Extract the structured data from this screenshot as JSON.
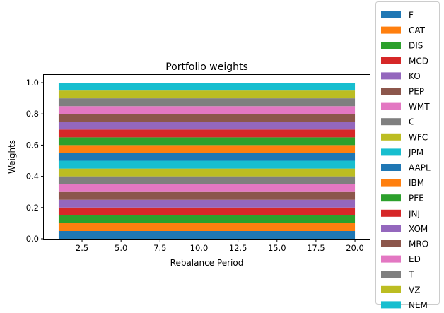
{
  "chart_data": {
    "type": "area",
    "title": "Portfolio weights",
    "xlabel": "Rebalance Period",
    "ylabel": "Weights",
    "x": [
      1,
      2,
      3,
      4,
      5,
      6,
      7,
      8,
      9,
      10,
      11,
      12,
      13,
      14,
      15,
      16,
      17,
      18,
      19,
      20
    ],
    "xlim": [
      0.05,
      20.95
    ],
    "ylim": [
      0,
      1.05
    ],
    "xticks": [
      "2.5",
      "5.0",
      "7.5",
      "10.0",
      "12.5",
      "15.0",
      "17.5",
      "20.0"
    ],
    "yticks": [
      "0.0",
      "0.2",
      "0.4",
      "0.6",
      "0.8",
      "1.0"
    ],
    "stacked": true,
    "grid": false,
    "legend_position": "outside-right",
    "series": [
      {
        "name": "F",
        "color": "#1f77b4",
        "values": [
          0.05,
          0.05,
          0.05,
          0.05,
          0.05,
          0.05,
          0.05,
          0.05,
          0.05,
          0.05,
          0.05,
          0.05,
          0.05,
          0.05,
          0.05,
          0.05,
          0.05,
          0.05,
          0.05,
          0.05
        ]
      },
      {
        "name": "CAT",
        "color": "#ff7f0e",
        "values": [
          0.05,
          0.05,
          0.05,
          0.05,
          0.05,
          0.05,
          0.05,
          0.05,
          0.05,
          0.05,
          0.05,
          0.05,
          0.05,
          0.05,
          0.05,
          0.05,
          0.05,
          0.05,
          0.05,
          0.05
        ]
      },
      {
        "name": "DIS",
        "color": "#2ca02c",
        "values": [
          0.05,
          0.05,
          0.05,
          0.05,
          0.05,
          0.05,
          0.05,
          0.05,
          0.05,
          0.05,
          0.05,
          0.05,
          0.05,
          0.05,
          0.05,
          0.05,
          0.05,
          0.05,
          0.05,
          0.05
        ]
      },
      {
        "name": "MCD",
        "color": "#d62728",
        "values": [
          0.05,
          0.05,
          0.05,
          0.05,
          0.05,
          0.05,
          0.05,
          0.05,
          0.05,
          0.05,
          0.05,
          0.05,
          0.05,
          0.05,
          0.05,
          0.05,
          0.05,
          0.05,
          0.05,
          0.05
        ]
      },
      {
        "name": "KO",
        "color": "#9467bd",
        "values": [
          0.05,
          0.05,
          0.05,
          0.05,
          0.05,
          0.05,
          0.05,
          0.05,
          0.05,
          0.05,
          0.05,
          0.05,
          0.05,
          0.05,
          0.05,
          0.05,
          0.05,
          0.05,
          0.05,
          0.05
        ]
      },
      {
        "name": "PEP",
        "color": "#8c564b",
        "values": [
          0.05,
          0.05,
          0.05,
          0.05,
          0.05,
          0.05,
          0.05,
          0.05,
          0.05,
          0.05,
          0.05,
          0.05,
          0.05,
          0.05,
          0.05,
          0.05,
          0.05,
          0.05,
          0.05,
          0.05
        ]
      },
      {
        "name": "WMT",
        "color": "#e377c2",
        "values": [
          0.05,
          0.05,
          0.05,
          0.05,
          0.05,
          0.05,
          0.05,
          0.05,
          0.05,
          0.05,
          0.05,
          0.05,
          0.05,
          0.05,
          0.05,
          0.05,
          0.05,
          0.05,
          0.05,
          0.05
        ]
      },
      {
        "name": "C",
        "color": "#7f7f7f",
        "values": [
          0.05,
          0.05,
          0.05,
          0.05,
          0.05,
          0.05,
          0.05,
          0.05,
          0.05,
          0.05,
          0.05,
          0.05,
          0.05,
          0.05,
          0.05,
          0.05,
          0.05,
          0.05,
          0.05,
          0.05
        ]
      },
      {
        "name": "WFC",
        "color": "#bcbd22",
        "values": [
          0.05,
          0.05,
          0.05,
          0.05,
          0.05,
          0.05,
          0.05,
          0.05,
          0.05,
          0.05,
          0.05,
          0.05,
          0.05,
          0.05,
          0.05,
          0.05,
          0.05,
          0.05,
          0.05,
          0.05
        ]
      },
      {
        "name": "JPM",
        "color": "#17becf",
        "values": [
          0.05,
          0.05,
          0.05,
          0.05,
          0.05,
          0.05,
          0.05,
          0.05,
          0.05,
          0.05,
          0.05,
          0.05,
          0.05,
          0.05,
          0.05,
          0.05,
          0.05,
          0.05,
          0.05,
          0.05
        ]
      },
      {
        "name": "AAPL",
        "color": "#1f77b4",
        "values": [
          0.05,
          0.05,
          0.05,
          0.05,
          0.05,
          0.05,
          0.05,
          0.05,
          0.05,
          0.05,
          0.05,
          0.05,
          0.05,
          0.05,
          0.05,
          0.05,
          0.05,
          0.05,
          0.05,
          0.05
        ]
      },
      {
        "name": "IBM",
        "color": "#ff7f0e",
        "values": [
          0.05,
          0.05,
          0.05,
          0.05,
          0.05,
          0.05,
          0.05,
          0.05,
          0.05,
          0.05,
          0.05,
          0.05,
          0.05,
          0.05,
          0.05,
          0.05,
          0.05,
          0.05,
          0.05,
          0.05
        ]
      },
      {
        "name": "PFE",
        "color": "#2ca02c",
        "values": [
          0.05,
          0.05,
          0.05,
          0.05,
          0.05,
          0.05,
          0.05,
          0.05,
          0.05,
          0.05,
          0.05,
          0.05,
          0.05,
          0.05,
          0.05,
          0.05,
          0.05,
          0.05,
          0.05,
          0.05
        ]
      },
      {
        "name": "JNJ",
        "color": "#d62728",
        "values": [
          0.05,
          0.05,
          0.05,
          0.05,
          0.05,
          0.05,
          0.05,
          0.05,
          0.05,
          0.05,
          0.05,
          0.05,
          0.05,
          0.05,
          0.05,
          0.05,
          0.05,
          0.05,
          0.05,
          0.05
        ]
      },
      {
        "name": "XOM",
        "color": "#9467bd",
        "values": [
          0.05,
          0.05,
          0.05,
          0.05,
          0.05,
          0.05,
          0.05,
          0.05,
          0.05,
          0.05,
          0.05,
          0.05,
          0.05,
          0.05,
          0.05,
          0.05,
          0.05,
          0.05,
          0.05,
          0.05
        ]
      },
      {
        "name": "MRO",
        "color": "#8c564b",
        "values": [
          0.05,
          0.05,
          0.05,
          0.05,
          0.05,
          0.05,
          0.05,
          0.05,
          0.05,
          0.05,
          0.05,
          0.05,
          0.05,
          0.05,
          0.05,
          0.05,
          0.05,
          0.05,
          0.05,
          0.05
        ]
      },
      {
        "name": "ED",
        "color": "#e377c2",
        "values": [
          0.05,
          0.05,
          0.05,
          0.05,
          0.05,
          0.05,
          0.05,
          0.05,
          0.05,
          0.05,
          0.05,
          0.05,
          0.05,
          0.05,
          0.05,
          0.05,
          0.05,
          0.05,
          0.05,
          0.05
        ]
      },
      {
        "name": "T",
        "color": "#7f7f7f",
        "values": [
          0.05,
          0.05,
          0.05,
          0.05,
          0.05,
          0.05,
          0.05,
          0.05,
          0.05,
          0.05,
          0.05,
          0.05,
          0.05,
          0.05,
          0.05,
          0.05,
          0.05,
          0.05,
          0.05,
          0.05
        ]
      },
      {
        "name": "VZ",
        "color": "#bcbd22",
        "values": [
          0.05,
          0.05,
          0.05,
          0.05,
          0.05,
          0.05,
          0.05,
          0.05,
          0.05,
          0.05,
          0.05,
          0.05,
          0.05,
          0.05,
          0.05,
          0.05,
          0.05,
          0.05,
          0.05,
          0.05
        ]
      },
      {
        "name": "NEM",
        "color": "#17becf",
        "values": [
          0.05,
          0.05,
          0.05,
          0.05,
          0.05,
          0.05,
          0.05,
          0.05,
          0.05,
          0.05,
          0.05,
          0.05,
          0.05,
          0.05,
          0.05,
          0.05,
          0.05,
          0.05,
          0.05,
          0.05
        ]
      }
    ]
  }
}
